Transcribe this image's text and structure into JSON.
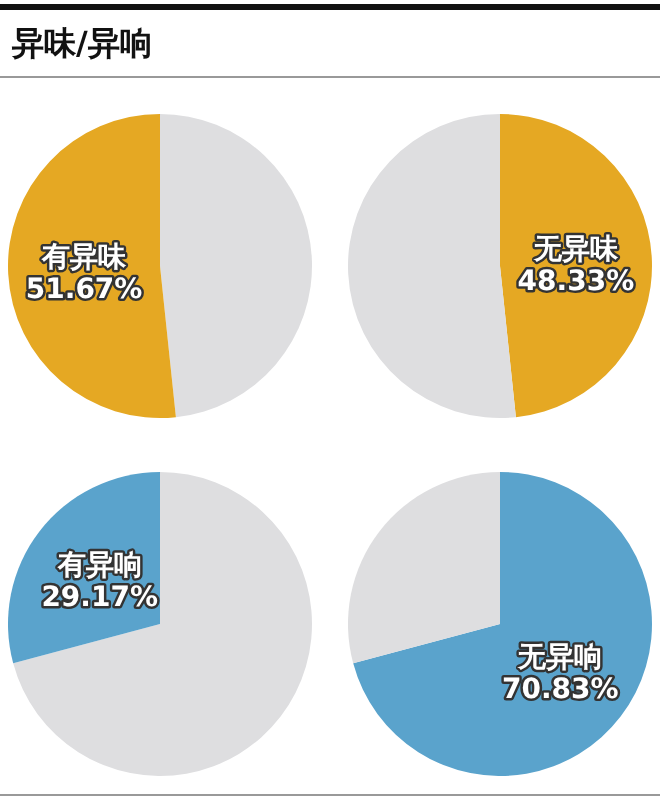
{
  "chart_data": [
    {
      "type": "pie",
      "title": "异味/异响",
      "categories": [
        null,
        "有异味"
      ],
      "values": [
        48.33,
        51.67
      ],
      "colors": [
        "#dedee0",
        "#e5a823"
      ],
      "value_labels": [
        null,
        "51.67%"
      ]
    },
    {
      "type": "pie",
      "categories": [
        "无异味",
        null
      ],
      "values": [
        48.33,
        51.67
      ],
      "colors": [
        "#e5a823",
        "#dedee0"
      ],
      "value_labels": [
        "48.33%",
        null
      ]
    },
    {
      "type": "pie",
      "categories": [
        null,
        "有异响"
      ],
      "values": [
        70.83,
        29.17
      ],
      "colors": [
        "#dedee0",
        "#5aa3cc"
      ],
      "value_labels": [
        null,
        "29.17%"
      ]
    },
    {
      "type": "pie",
      "categories": [
        "无异响",
        null
      ],
      "values": [
        70.83,
        29.17
      ],
      "colors": [
        "#5aa3cc",
        "#dedee0"
      ],
      "value_labels": [
        "70.83%",
        null
      ]
    }
  ]
}
